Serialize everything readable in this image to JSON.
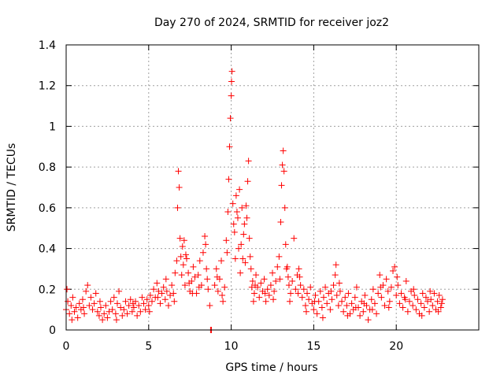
{
  "chart_data": {
    "type": "scatter",
    "title": "Day 270 of 2024, SRMTID for receiver joz2",
    "xlabel": "GPS time / hours",
    "ylabel": "SRMTID / TECUs",
    "xlim": [
      0,
      25
    ],
    "ylim": [
      0,
      1.4
    ],
    "xticks": [
      0,
      5,
      10,
      15,
      20
    ],
    "yticks": [
      0,
      0.2,
      0.4,
      0.6,
      0.8,
      1,
      1.2,
      1.4
    ],
    "xtick_labels": [
      "0",
      "5",
      "10",
      "15",
      "20"
    ],
    "ytick_labels": [
      "0",
      "0.2",
      "0.4",
      "0.6",
      "0.8",
      "1",
      "1.2",
      "1.4"
    ],
    "grid": true,
    "marker": "+",
    "color": "#ff0000",
    "series": [
      {
        "name": "joz2",
        "points": [
          [
            0.0,
            0.1
          ],
          [
            0.1,
            0.14
          ],
          [
            0.2,
            0.08
          ],
          [
            0.3,
            0.12
          ],
          [
            0.4,
            0.16
          ],
          [
            0.5,
            0.09
          ],
          [
            0.6,
            0.11
          ],
          [
            0.7,
            0.06
          ],
          [
            0.8,
            0.13
          ],
          [
            0.9,
            0.1
          ],
          [
            1.0,
            0.15
          ],
          [
            1.1,
            0.08
          ],
          [
            1.2,
            0.19
          ],
          [
            1.3,
            0.22
          ],
          [
            1.4,
            0.12
          ],
          [
            1.5,
            0.16
          ],
          [
            1.6,
            0.1
          ],
          [
            1.7,
            0.13
          ],
          [
            1.8,
            0.18
          ],
          [
            1.9,
            0.09
          ],
          [
            2.0,
            0.07
          ],
          [
            2.1,
            0.11
          ],
          [
            2.2,
            0.05
          ],
          [
            2.3,
            0.08
          ],
          [
            2.4,
            0.12
          ],
          [
            2.5,
            0.06
          ],
          [
            2.6,
            0.09
          ],
          [
            2.7,
            0.14
          ],
          [
            2.8,
            0.1
          ],
          [
            2.9,
            0.16
          ],
          [
            3.0,
            0.08
          ],
          [
            3.1,
            0.13
          ],
          [
            3.2,
            0.19
          ],
          [
            3.3,
            0.11
          ],
          [
            3.4,
            0.07
          ],
          [
            3.5,
            0.1
          ],
          [
            3.6,
            0.14
          ],
          [
            3.7,
            0.08
          ],
          [
            3.8,
            0.12
          ],
          [
            3.9,
            0.15
          ],
          [
            4.0,
            0.09
          ],
          [
            4.1,
            0.11
          ],
          [
            4.2,
            0.14
          ],
          [
            4.3,
            0.07
          ],
          [
            4.4,
            0.12
          ],
          [
            4.5,
            0.09
          ],
          [
            4.6,
            0.16
          ],
          [
            4.7,
            0.13
          ],
          [
            4.8,
            0.1
          ],
          [
            4.9,
            0.15
          ],
          [
            5.0,
            0.12
          ],
          [
            5.1,
            0.17
          ],
          [
            5.2,
            0.14
          ],
          [
            5.3,
            0.2
          ],
          [
            5.4,
            0.16
          ],
          [
            5.5,
            0.23
          ],
          [
            5.6,
            0.19
          ],
          [
            5.7,
            0.13
          ],
          [
            5.8,
            0.18
          ],
          [
            5.9,
            0.21
          ],
          [
            6.0,
            0.15
          ],
          [
            6.1,
            0.19
          ],
          [
            6.2,
            0.12
          ],
          [
            6.3,
            0.17
          ],
          [
            6.4,
            0.22
          ],
          [
            6.5,
            0.18
          ],
          [
            6.6,
            0.28
          ],
          [
            6.7,
            0.34
          ],
          [
            6.75,
            0.6
          ],
          [
            6.8,
            0.78
          ],
          [
            6.85,
            0.7
          ],
          [
            6.9,
            0.45
          ],
          [
            6.95,
            0.36
          ],
          [
            7.0,
            0.27
          ],
          [
            7.05,
            0.41
          ],
          [
            7.1,
            0.32
          ],
          [
            7.2,
            0.22
          ],
          [
            7.3,
            0.35
          ],
          [
            7.4,
            0.28
          ],
          [
            7.5,
            0.19
          ],
          [
            7.6,
            0.24
          ],
          [
            7.7,
            0.31
          ],
          [
            7.8,
            0.26
          ],
          [
            7.9,
            0.18
          ],
          [
            8.0,
            0.27
          ],
          [
            8.1,
            0.34
          ],
          [
            8.2,
            0.22
          ],
          [
            8.3,
            0.38
          ],
          [
            8.4,
            0.46
          ],
          [
            8.5,
            0.3
          ],
          [
            8.6,
            0.2
          ],
          [
            8.7,
            0.12
          ],
          [
            8.75,
            0.0
          ],
          [
            8.8,
            0.0
          ],
          [
            9.0,
            0.22
          ],
          [
            9.1,
            0.3
          ],
          [
            9.2,
            0.19
          ],
          [
            9.3,
            0.25
          ],
          [
            9.4,
            0.34
          ],
          [
            9.5,
            0.14
          ],
          [
            9.6,
            0.21
          ],
          [
            9.7,
            0.44
          ],
          [
            9.8,
            0.58
          ],
          [
            9.85,
            0.74
          ],
          [
            9.9,
            0.9
          ],
          [
            9.95,
            1.04
          ],
          [
            10.0,
            1.15
          ],
          [
            10.02,
            1.22
          ],
          [
            10.05,
            1.27
          ],
          [
            10.1,
            0.62
          ],
          [
            10.2,
            0.48
          ],
          [
            10.3,
            0.66
          ],
          [
            10.4,
            0.55
          ],
          [
            10.5,
            0.69
          ],
          [
            10.6,
            0.42
          ],
          [
            10.7,
            0.35
          ],
          [
            10.8,
            0.52
          ],
          [
            10.9,
            0.61
          ],
          [
            11.0,
            0.73
          ],
          [
            11.05,
            0.83
          ],
          [
            11.1,
            0.45
          ],
          [
            11.2,
            0.3
          ],
          [
            11.3,
            0.24
          ],
          [
            11.4,
            0.18
          ],
          [
            11.5,
            0.27
          ],
          [
            11.6,
            0.21
          ],
          [
            11.7,
            0.16
          ],
          [
            11.8,
            0.23
          ],
          [
            11.9,
            0.19
          ],
          [
            12.0,
            0.25
          ],
          [
            12.1,
            0.14
          ],
          [
            12.2,
            0.2
          ],
          [
            12.3,
            0.17
          ],
          [
            12.4,
            0.22
          ],
          [
            12.5,
            0.28
          ],
          [
            12.6,
            0.19
          ],
          [
            12.7,
            0.24
          ],
          [
            12.8,
            0.31
          ],
          [
            12.9,
            0.36
          ],
          [
            13.0,
            0.53
          ],
          [
            13.05,
            0.71
          ],
          [
            13.1,
            0.81
          ],
          [
            13.15,
            0.88
          ],
          [
            13.2,
            0.78
          ],
          [
            13.25,
            0.6
          ],
          [
            13.3,
            0.42
          ],
          [
            13.4,
            0.31
          ],
          [
            13.5,
            0.22
          ],
          [
            13.6,
            0.18
          ],
          [
            13.7,
            0.24
          ],
          [
            13.8,
            0.45
          ],
          [
            13.9,
            0.2
          ],
          [
            14.0,
            0.27
          ],
          [
            14.1,
            0.3
          ],
          [
            14.2,
            0.22
          ],
          [
            14.3,
            0.16
          ],
          [
            14.4,
            0.2
          ],
          [
            14.5,
            0.12
          ],
          [
            14.6,
            0.18
          ],
          [
            14.7,
            0.15
          ],
          [
            14.8,
            0.21
          ],
          [
            14.9,
            0.13
          ],
          [
            15.0,
            0.1
          ],
          [
            15.1,
            0.17
          ],
          [
            15.2,
            0.08
          ],
          [
            15.3,
            0.14
          ],
          [
            15.4,
            0.19
          ],
          [
            15.5,
            0.11
          ],
          [
            15.6,
            0.16
          ],
          [
            15.7,
            0.21
          ],
          [
            15.8,
            0.13
          ],
          [
            15.9,
            0.18
          ],
          [
            16.0,
            0.1
          ],
          [
            16.1,
            0.15
          ],
          [
            16.2,
            0.22
          ],
          [
            16.3,
            0.27
          ],
          [
            16.4,
            0.17
          ],
          [
            16.5,
            0.12
          ],
          [
            16.6,
            0.19
          ],
          [
            16.7,
            0.14
          ],
          [
            16.8,
            0.09
          ],
          [
            16.9,
            0.16
          ],
          [
            17.0,
            0.12
          ],
          [
            17.1,
            0.18
          ],
          [
            17.2,
            0.08
          ],
          [
            17.3,
            0.13
          ],
          [
            17.4,
            0.1
          ],
          [
            17.5,
            0.16
          ],
          [
            17.6,
            0.21
          ],
          [
            17.7,
            0.11
          ],
          [
            17.8,
            0.07
          ],
          [
            17.9,
            0.14
          ],
          [
            18.0,
            0.09
          ],
          [
            18.1,
            0.17
          ],
          [
            18.2,
            0.12
          ],
          [
            18.3,
            0.05
          ],
          [
            18.4,
            0.1
          ],
          [
            18.5,
            0.15
          ],
          [
            18.6,
            0.2
          ],
          [
            18.7,
            0.13
          ],
          [
            18.8,
            0.08
          ],
          [
            18.9,
            0.18
          ],
          [
            19.0,
            0.27
          ],
          [
            19.1,
            0.16
          ],
          [
            19.2,
            0.22
          ],
          [
            19.3,
            0.12
          ],
          [
            19.4,
            0.25
          ],
          [
            19.5,
            0.19
          ],
          [
            19.6,
            0.14
          ],
          [
            19.7,
            0.21
          ],
          [
            19.8,
            0.29
          ],
          [
            19.9,
            0.31
          ],
          [
            20.0,
            0.17
          ],
          [
            20.1,
            0.22
          ],
          [
            20.2,
            0.13
          ],
          [
            20.3,
            0.18
          ],
          [
            20.4,
            0.11
          ],
          [
            20.5,
            0.16
          ],
          [
            20.6,
            0.24
          ],
          [
            20.7,
            0.09
          ],
          [
            20.8,
            0.14
          ],
          [
            20.9,
            0.19
          ],
          [
            21.0,
            0.12
          ],
          [
            21.1,
            0.17
          ],
          [
            21.2,
            0.1
          ],
          [
            21.3,
            0.15
          ],
          [
            21.4,
            0.08
          ],
          [
            21.5,
            0.13
          ],
          [
            21.6,
            0.18
          ],
          [
            21.7,
            0.11
          ],
          [
            21.8,
            0.16
          ],
          [
            21.9,
            0.14
          ],
          [
            22.0,
            0.09
          ],
          [
            22.1,
            0.15
          ],
          [
            22.2,
            0.12
          ],
          [
            22.3,
            0.18
          ],
          [
            22.4,
            0.1
          ],
          [
            22.5,
            0.14
          ],
          [
            22.6,
            0.17
          ],
          [
            22.7,
            0.11
          ],
          [
            22.8,
            0.15
          ],
          [
            0.05,
            0.2
          ],
          [
            0.35,
            0.05
          ],
          [
            1.05,
            0.11
          ],
          [
            2.05,
            0.14
          ],
          [
            3.05,
            0.05
          ],
          [
            4.05,
            0.13
          ],
          [
            5.05,
            0.09
          ],
          [
            5.55,
            0.16
          ],
          [
            6.05,
            0.25
          ],
          [
            6.55,
            0.14
          ],
          [
            7.15,
            0.44
          ],
          [
            7.25,
            0.37
          ],
          [
            7.45,
            0.23
          ],
          [
            7.65,
            0.18
          ],
          [
            8.05,
            0.21
          ],
          [
            8.45,
            0.42
          ],
          [
            8.55,
            0.25
          ],
          [
            9.15,
            0.26
          ],
          [
            9.45,
            0.17
          ],
          [
            9.75,
            0.38
          ],
          [
            10.15,
            0.52
          ],
          [
            10.25,
            0.35
          ],
          [
            10.35,
            0.58
          ],
          [
            10.45,
            0.4
          ],
          [
            10.55,
            0.28
          ],
          [
            10.65,
            0.6
          ],
          [
            10.75,
            0.47
          ],
          [
            10.85,
            0.33
          ],
          [
            10.95,
            0.55
          ],
          [
            11.15,
            0.36
          ],
          [
            11.25,
            0.21
          ],
          [
            11.35,
            0.14
          ],
          [
            11.45,
            0.22
          ],
          [
            12.05,
            0.18
          ],
          [
            12.55,
            0.15
          ],
          [
            12.95,
            0.25
          ],
          [
            13.35,
            0.3
          ],
          [
            13.45,
            0.26
          ],
          [
            13.55,
            0.14
          ],
          [
            14.05,
            0.18
          ],
          [
            14.15,
            0.26
          ],
          [
            14.55,
            0.09
          ],
          [
            15.05,
            0.14
          ],
          [
            15.55,
            0.06
          ],
          [
            16.05,
            0.19
          ],
          [
            16.35,
            0.32
          ],
          [
            16.55,
            0.23
          ],
          [
            17.05,
            0.07
          ],
          [
            17.55,
            0.11
          ],
          [
            18.05,
            0.13
          ],
          [
            18.55,
            0.1
          ],
          [
            19.05,
            0.21
          ],
          [
            19.55,
            0.11
          ],
          [
            20.05,
            0.26
          ],
          [
            20.55,
            0.15
          ],
          [
            21.05,
            0.2
          ],
          [
            21.55,
            0.07
          ],
          [
            22.05,
            0.19
          ],
          [
            22.55,
            0.09
          ],
          [
            22.75,
            0.13
          ]
        ]
      }
    ]
  }
}
